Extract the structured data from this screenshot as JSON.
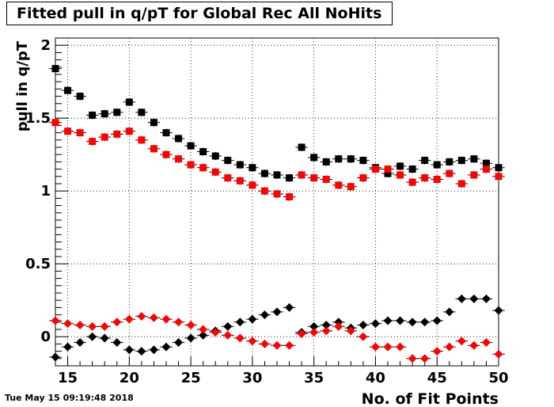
{
  "chart_data": {
    "type": "scatter",
    "title": "Fitted pull in q/pT for Global Rec All NoHits",
    "xlabel": "No. of Fit Points",
    "ylabel": "pull in q/pT",
    "xlim": [
      14,
      50
    ],
    "ylim": [
      -0.2,
      2.05
    ],
    "xticks": [
      15,
      20,
      25,
      30,
      35,
      40,
      45,
      50
    ],
    "yticks": [
      0,
      0.5,
      1,
      1.5,
      2
    ],
    "ytick_labels": [
      "0",
      "0.5",
      "1",
      "1.5",
      "2"
    ],
    "grid": true,
    "series": [
      {
        "marker": "square",
        "color": "#000000",
        "x": [
          14,
          15,
          16,
          17,
          18,
          19,
          20,
          21,
          22,
          23,
          24,
          25,
          26,
          27,
          28,
          29,
          30,
          31,
          32,
          33,
          34,
          35,
          36,
          37,
          38,
          39,
          40,
          41,
          42,
          43,
          44,
          45,
          46,
          47,
          48,
          49,
          50
        ],
        "y": [
          1.84,
          1.69,
          1.65,
          1.52,
          1.53,
          1.54,
          1.61,
          1.54,
          1.47,
          1.4,
          1.36,
          1.31,
          1.27,
          1.24,
          1.21,
          1.18,
          1.16,
          1.12,
          1.11,
          1.09,
          1.3,
          1.23,
          1.2,
          1.22,
          1.22,
          1.21,
          1.16,
          1.12,
          1.17,
          1.15,
          1.21,
          1.18,
          1.2,
          1.21,
          1.22,
          1.19,
          1.16
        ]
      },
      {
        "marker": "square",
        "color": "#ff0000",
        "x": [
          14,
          15,
          16,
          17,
          18,
          19,
          20,
          21,
          22,
          23,
          24,
          25,
          26,
          27,
          28,
          29,
          30,
          31,
          32,
          33,
          34,
          35,
          36,
          37,
          38,
          39,
          40,
          41,
          42,
          43,
          44,
          45,
          46,
          47,
          48,
          49,
          50
        ],
        "y": [
          1.47,
          1.41,
          1.4,
          1.34,
          1.37,
          1.39,
          1.41,
          1.35,
          1.29,
          1.25,
          1.22,
          1.18,
          1.16,
          1.13,
          1.09,
          1.07,
          1.04,
          1.0,
          0.98,
          0.96,
          1.11,
          1.09,
          1.08,
          1.04,
          1.03,
          1.09,
          1.15,
          1.15,
          1.11,
          1.06,
          1.09,
          1.08,
          1.12,
          1.05,
          1.11,
          1.15,
          1.1
        ]
      },
      {
        "marker": "diamond",
        "color": "#000000",
        "x": [
          14,
          15,
          16,
          17,
          18,
          19,
          20,
          21,
          22,
          23,
          24,
          25,
          26,
          27,
          28,
          29,
          30,
          31,
          32,
          33,
          34,
          35,
          36,
          37,
          38,
          39,
          40,
          41,
          42,
          43,
          44,
          45,
          46,
          47,
          48,
          49,
          50
        ],
        "y": [
          -0.14,
          -0.07,
          -0.04,
          0.0,
          -0.01,
          -0.04,
          -0.09,
          -0.1,
          -0.09,
          -0.07,
          -0.04,
          -0.01,
          0.01,
          0.04,
          0.07,
          0.1,
          0.12,
          0.15,
          0.17,
          0.2,
          0.03,
          0.07,
          0.08,
          0.1,
          0.06,
          0.08,
          0.09,
          0.11,
          0.11,
          0.1,
          0.1,
          0.11,
          0.17,
          0.26,
          0.26,
          0.26,
          0.18
        ]
      },
      {
        "marker": "diamond",
        "color": "#ff0000",
        "x": [
          14,
          15,
          16,
          17,
          18,
          19,
          20,
          21,
          22,
          23,
          24,
          25,
          26,
          27,
          28,
          29,
          30,
          31,
          32,
          33,
          34,
          35,
          36,
          37,
          38,
          39,
          40,
          41,
          42,
          43,
          44,
          45,
          46,
          47,
          48,
          49,
          50
        ],
        "y": [
          0.11,
          0.09,
          0.08,
          0.07,
          0.07,
          0.1,
          0.12,
          0.14,
          0.13,
          0.12,
          0.1,
          0.08,
          0.05,
          0.03,
          0.01,
          -0.01,
          -0.03,
          -0.05,
          -0.06,
          -0.06,
          0.02,
          0.03,
          0.04,
          0.07,
          0.04,
          0.0,
          -0.07,
          -0.07,
          -0.07,
          -0.15,
          -0.15,
          -0.1,
          -0.07,
          -0.03,
          -0.06,
          -0.04,
          -0.12
        ]
      }
    ]
  },
  "footer": {
    "timestamp": "Tue May 15 09:19:48 2018"
  }
}
